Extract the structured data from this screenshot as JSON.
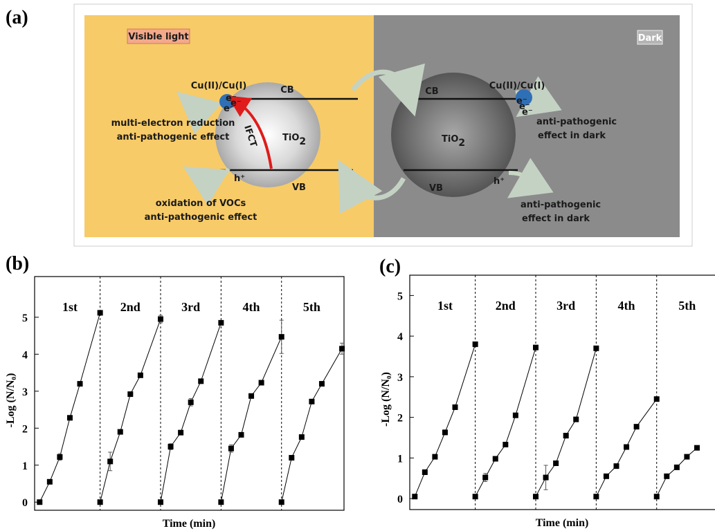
{
  "panels": {
    "a": "(a)",
    "b": "(b)",
    "c": "(c)"
  },
  "diagram": {
    "visible_light": "Visible light",
    "dark": "Dark",
    "cu_left": "Cu(II)/Cu(I)",
    "cu_right": "Cu(II)/Cu(I)",
    "cb_left": "CB",
    "cb_right": "CB",
    "vb_left": "VB",
    "vb_right": "VB",
    "tio2_left": "TiO",
    "tio2_left_sub": "2",
    "tio2_right": "TiO",
    "tio2_right_sub": "2",
    "ifct": "IFCT",
    "hole_left": "h⁺",
    "hole_right": "h⁺",
    "electrons_left": [
      "e⁻",
      "e⁻",
      "e⁻"
    ],
    "electrons_right": [
      "e⁻",
      "e⁻",
      "e⁻"
    ],
    "reduction": [
      "multi-electron reduction",
      "anti-pathogenic effect"
    ],
    "oxidation": [
      "oxidation of VOCs",
      "anti-pathogenic effect"
    ],
    "dark_cb": [
      "anti-pathogenic",
      "effect in dark"
    ],
    "dark_vb": [
      "anti-pathogenic",
      "effect in dark"
    ]
  },
  "chart_data": [
    {
      "type": "line",
      "xlabel": "Time (min)",
      "ylabel": "-Log (N/N₀)",
      "xlim": [
        -5,
        302
      ],
      "ylim": [
        -0.22,
        6.1
      ],
      "yticks": [
        0,
        1,
        2,
        3,
        4,
        5
      ],
      "dividers": [
        60,
        120,
        180,
        240
      ],
      "series": [
        {
          "name": "1st",
          "color": "#000000",
          "x": [
            0,
            10,
            20,
            30,
            40,
            60
          ],
          "values": [
            0,
            0.55,
            1.22,
            2.28,
            3.2,
            5.12
          ],
          "errors": [
            0.02,
            0.06,
            0.09,
            0.04,
            0.04,
            0.05
          ]
        },
        {
          "name": "2nd",
          "color": "#000000",
          "x": [
            60,
            70,
            80,
            90,
            100,
            120
          ],
          "values": [
            0,
            1.1,
            1.9,
            2.92,
            3.43,
            4.95
          ],
          "errors": [
            0.02,
            0.25,
            0.05,
            0.05,
            0.04,
            0.1
          ]
        },
        {
          "name": "3rd",
          "color": "#000000",
          "x": [
            120,
            130,
            140,
            150,
            160,
            180
          ],
          "values": [
            0,
            1.5,
            1.88,
            2.7,
            3.27,
            4.85
          ],
          "errors": [
            0.02,
            0.08,
            0.03,
            0.1,
            0.04,
            0.06
          ]
        },
        {
          "name": "4th",
          "color": "#000000",
          "x": [
            180,
            190,
            200,
            210,
            220,
            240
          ],
          "values": [
            0,
            1.45,
            1.82,
            2.87,
            3.23,
            4.47
          ],
          "errors": [
            0.02,
            0.1,
            0.03,
            0.03,
            0.03,
            0.45
          ]
        },
        {
          "name": "5th",
          "color": "#000000",
          "x": [
            240,
            250,
            260,
            270,
            280,
            300
          ],
          "values": [
            0,
            1.2,
            1.76,
            2.72,
            3.2,
            4.15
          ],
          "errors": [
            0.02,
            0.03,
            0.03,
            0.03,
            0.03,
            0.15
          ]
        }
      ]
    },
    {
      "type": "line",
      "xlabel": "Time (min)",
      "ylabel": "-Log (N/N₀)",
      "xlim": [
        -5,
        302
      ],
      "ylim": [
        -0.27,
        5.5
      ],
      "yticks": [
        0,
        1,
        2,
        3,
        4,
        5
      ],
      "dividers": [
        60,
        120,
        180,
        240
      ],
      "series": [
        {
          "name": "1st",
          "color": "#000000",
          "x": [
            0,
            10,
            20,
            30,
            40,
            60
          ],
          "values": [
            0.05,
            0.65,
            1.03,
            1.63,
            2.25,
            3.8
          ],
          "errors": [
            0.02,
            0.06,
            0.03,
            0.06,
            0.04,
            0.03
          ]
        },
        {
          "name": "2nd",
          "color": "#000000",
          "x": [
            60,
            70,
            80,
            90,
            100,
            120
          ],
          "values": [
            0.05,
            0.52,
            0.98,
            1.33,
            2.05,
            3.72
          ],
          "errors": [
            0.02,
            0.1,
            0.03,
            0.06,
            0.04,
            0.03
          ]
        },
        {
          "name": "3rd",
          "color": "#000000",
          "x": [
            120,
            130,
            140,
            150,
            160,
            180
          ],
          "values": [
            0.05,
            0.52,
            0.87,
            1.55,
            1.95,
            3.7
          ],
          "errors": [
            0.02,
            0.3,
            0.03,
            0.06,
            0.04,
            0.04
          ]
        },
        {
          "name": "4th",
          "color": "#000000",
          "x": [
            180,
            190,
            200,
            210,
            220,
            240
          ],
          "values": [
            0.05,
            0.55,
            0.8,
            1.27,
            1.77,
            2.45
          ],
          "errors": [
            0.02,
            0.03,
            0.03,
            0.03,
            0.03,
            0.03
          ]
        },
        {
          "name": "5th",
          "color": "#000000",
          "x": [
            240,
            250,
            260,
            270,
            280
          ],
          "values": [
            0.05,
            0.55,
            0.77,
            1.03,
            1.25
          ],
          "errors": [
            0.02,
            0.03,
            0.03,
            0.03,
            0.03
          ]
        }
      ]
    }
  ]
}
